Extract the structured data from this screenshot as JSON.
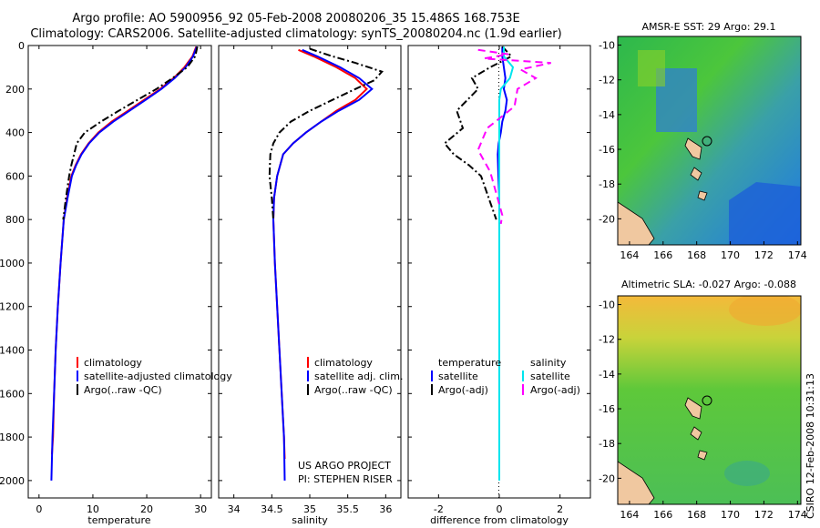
{
  "title": {
    "line1": "Argo profile: AO 5900956_92 05-Feb-2008 20080206_35 15.486S 168.753E",
    "line2": "Climatology: CARS2006. Satellite-adjusted climatology: synTS_20080204.nc (1.9d earlier)"
  },
  "colors": {
    "climatology": "#ff0000",
    "satellite": "#0000ff",
    "argo": "#000000",
    "salinity_satellite": "#00e5ee",
    "salinity_argo": "#ff00ff"
  },
  "chart_data": [
    {
      "type": "line",
      "name": "temperature-profile",
      "xlabel": "temperature",
      "xlim": [
        -2,
        32
      ],
      "ylim": [
        0,
        2080
      ],
      "y_reversed": true,
      "xticks": [
        0,
        10,
        20,
        30
      ],
      "yticks": [
        0,
        200,
        400,
        600,
        800,
        1000,
        1200,
        1400,
        1600,
        1800,
        2000
      ],
      "legend": [
        "climatology",
        "satellite-adjusted climatology",
        "Argo(..raw -QC)"
      ],
      "series": [
        {
          "name": "climatology",
          "color": "#ff0000",
          "dash": "",
          "points": [
            [
              29.2,
              5
            ],
            [
              28.5,
              50
            ],
            [
              27,
              100
            ],
            [
              25,
              150
            ],
            [
              22.5,
              200
            ],
            [
              19.5,
              250
            ],
            [
              16.5,
              300
            ],
            [
              13.5,
              350
            ],
            [
              11,
              400
            ],
            [
              9.2,
              450
            ],
            [
              7.8,
              500
            ],
            [
              6.8,
              550
            ],
            [
              6.0,
              600
            ],
            [
              5.2,
              700
            ],
            [
              4.6,
              800
            ],
            [
              4.0,
              1000
            ],
            [
              3.5,
              1200
            ],
            [
              3.1,
              1400
            ],
            [
              2.8,
              1600
            ],
            [
              2.6,
              1800
            ],
            [
              2.4,
              1880
            ]
          ]
        },
        {
          "name": "satellite-adjusted climatology",
          "color": "#0000ff",
          "dash": "",
          "points": [
            [
              29.3,
              5
            ],
            [
              28.6,
              50
            ],
            [
              27.2,
              100
            ],
            [
              25.2,
              150
            ],
            [
              22.7,
              200
            ],
            [
              19.8,
              250
            ],
            [
              16.8,
              300
            ],
            [
              13.8,
              350
            ],
            [
              11.2,
              400
            ],
            [
              9.3,
              450
            ],
            [
              7.9,
              500
            ],
            [
              6.9,
              550
            ],
            [
              6.1,
              600
            ],
            [
              5.3,
              700
            ],
            [
              4.6,
              800
            ],
            [
              4.0,
              1000
            ],
            [
              3.5,
              1200
            ],
            [
              3.1,
              1400
            ],
            [
              2.8,
              1600
            ],
            [
              2.5,
              1800
            ],
            [
              2.3,
              2000
            ]
          ]
        },
        {
          "name": "Argo(..raw -QC)",
          "color": "#000000",
          "dash": "8,3,2,3",
          "points": [
            [
              29.4,
              5
            ],
            [
              29,
              50
            ],
            [
              27.5,
              100
            ],
            [
              24.8,
              150
            ],
            [
              21.8,
              200
            ],
            [
              18.3,
              250
            ],
            [
              14.8,
              300
            ],
            [
              11.5,
              350
            ],
            [
              8.5,
              400
            ],
            [
              7.0,
              450
            ],
            [
              6.5,
              500
            ],
            [
              6.0,
              550
            ],
            [
              5.6,
              600
            ],
            [
              5.0,
              700
            ],
            [
              4.5,
              800
            ]
          ]
        }
      ]
    },
    {
      "type": "line",
      "name": "salinity-profile",
      "xlabel": "salinity",
      "xlim": [
        33.8,
        36.2
      ],
      "ylim": [
        0,
        2080
      ],
      "y_reversed": true,
      "xticks": [
        34,
        34.5,
        35,
        35.5,
        36
      ],
      "legend": [
        "climatology",
        "satellite adj. clim.",
        "Argo(..raw -QC)"
      ],
      "annotation": [
        "US ARGO PROJECT",
        "PI: STEPHEN RISER"
      ],
      "series": [
        {
          "name": "climatology",
          "color": "#ff0000",
          "dash": "",
          "points": [
            [
              34.85,
              20
            ],
            [
              35.05,
              50
            ],
            [
              35.35,
              100
            ],
            [
              35.6,
              150
            ],
            [
              35.75,
              200
            ],
            [
              35.6,
              250
            ],
            [
              35.35,
              300
            ],
            [
              35.15,
              350
            ],
            [
              34.95,
              400
            ],
            [
              34.78,
              450
            ],
            [
              34.65,
              500
            ],
            [
              34.57,
              600
            ],
            [
              34.53,
              700
            ],
            [
              34.52,
              800
            ],
            [
              34.54,
              1000
            ],
            [
              34.57,
              1200
            ],
            [
              34.6,
              1400
            ],
            [
              34.63,
              1600
            ],
            [
              34.66,
              1800
            ],
            [
              34.67,
              1900
            ]
          ]
        },
        {
          "name": "satellite adj. clim.",
          "color": "#0000ff",
          "dash": "",
          "points": [
            [
              34.9,
              20
            ],
            [
              35.1,
              50
            ],
            [
              35.4,
              100
            ],
            [
              35.65,
              150
            ],
            [
              35.82,
              200
            ],
            [
              35.65,
              250
            ],
            [
              35.38,
              300
            ],
            [
              35.15,
              350
            ],
            [
              34.95,
              400
            ],
            [
              34.78,
              450
            ],
            [
              34.65,
              500
            ],
            [
              34.57,
              600
            ],
            [
              34.53,
              700
            ],
            [
              34.52,
              800
            ],
            [
              34.54,
              1000
            ],
            [
              34.57,
              1200
            ],
            [
              34.6,
              1400
            ],
            [
              34.63,
              1600
            ],
            [
              34.66,
              1800
            ],
            [
              34.67,
              2000
            ]
          ]
        },
        {
          "name": "Argo(..raw -QC)",
          "color": "#000000",
          "dash": "8,3,2,3",
          "points": [
            [
              35.0,
              15
            ],
            [
              35.3,
              50
            ],
            [
              35.6,
              80
            ],
            [
              35.95,
              120
            ],
            [
              35.85,
              160
            ],
            [
              35.6,
              200
            ],
            [
              35.3,
              250
            ],
            [
              35.0,
              300
            ],
            [
              34.75,
              350
            ],
            [
              34.6,
              400
            ],
            [
              34.52,
              450
            ],
            [
              34.48,
              500
            ],
            [
              34.47,
              600
            ],
            [
              34.5,
              700
            ],
            [
              34.52,
              800
            ]
          ]
        }
      ]
    },
    {
      "type": "line",
      "name": "difference-profile",
      "xlabel": "difference from climatology",
      "xlim": [
        -3,
        3
      ],
      "ylim": [
        0,
        2080
      ],
      "y_reversed": true,
      "xticks": [
        -2,
        0,
        2
      ],
      "legend": [
        "temperature",
        "satellite",
        "Argo(-adj)",
        "salinity",
        "satellite",
        "Argo(-adj)"
      ],
      "series": [
        {
          "name": "temperature satellite",
          "color": "#0000ff",
          "dash": "",
          "points": [
            [
              0.1,
              5
            ],
            [
              0.1,
              50
            ],
            [
              0.15,
              100
            ],
            [
              0.2,
              150
            ],
            [
              0.15,
              200
            ],
            [
              0.25,
              250
            ],
            [
              0.2,
              300
            ],
            [
              0.1,
              350
            ],
            [
              0.05,
              400
            ],
            [
              -0.02,
              450
            ],
            [
              -0.05,
              500
            ],
            [
              -0.03,
              600
            ],
            [
              0,
              700
            ],
            [
              0,
              800
            ],
            [
              0,
              1000
            ],
            [
              0,
              1400
            ]
          ]
        },
        {
          "name": "temperature Argo(-adj)",
          "color": "#000000",
          "dash": "8,3,2,3",
          "points": [
            [
              0.1,
              5
            ],
            [
              0.4,
              50
            ],
            [
              -0.3,
              100
            ],
            [
              -0.9,
              150
            ],
            [
              -0.7,
              200
            ],
            [
              -1.4,
              300
            ],
            [
              -1.2,
              380
            ],
            [
              -1.8,
              450
            ],
            [
              -1.5,
              500
            ],
            [
              -1.0,
              550
            ],
            [
              -0.6,
              600
            ],
            [
              -0.35,
              700
            ],
            [
              -0.1,
              800
            ]
          ]
        },
        {
          "name": "salinity satellite",
          "color": "#00e5ee",
          "dash": "",
          "points": [
            [
              0.15,
              5
            ],
            [
              0.15,
              50
            ],
            [
              0.45,
              100
            ],
            [
              0.35,
              150
            ],
            [
              0.05,
              200
            ],
            [
              0,
              250
            ],
            [
              0,
              300
            ],
            [
              0,
              400
            ],
            [
              0,
              600
            ],
            [
              0,
              800
            ],
            [
              0,
              1000
            ],
            [
              0,
              1400
            ],
            [
              0,
              1800
            ],
            [
              0,
              2000
            ]
          ]
        },
        {
          "name": "salinity Argo(-adj)",
          "color": "#ff00ff",
          "dash": "8,5",
          "points": [
            [
              -0.7,
              20
            ],
            [
              0.3,
              40
            ],
            [
              -0.5,
              60
            ],
            [
              1.7,
              80
            ],
            [
              0.7,
              110
            ],
            [
              1.2,
              150
            ],
            [
              0.6,
              200
            ],
            [
              0.5,
              280
            ],
            [
              -0.4,
              380
            ],
            [
              -0.7,
              480
            ],
            [
              -0.3,
              580
            ],
            [
              -0.1,
              680
            ],
            [
              0.1,
              780
            ],
            [
              0.05,
              820
            ]
          ]
        }
      ]
    },
    {
      "type": "heatmap",
      "name": "sst-map",
      "title": "AMSR-E SST: 29 Argo: 29.1",
      "xlim": [
        163.3,
        174.2
      ],
      "ylim": [
        -21.5,
        -9.5
      ],
      "xticks": [
        164,
        166,
        168,
        170,
        172,
        174
      ],
      "yticks": [
        -10,
        -12,
        -14,
        -16,
        -18,
        -20
      ],
      "marker": {
        "lon": 168.753,
        "lat": -15.486
      }
    },
    {
      "type": "heatmap",
      "name": "sla-map",
      "title": "Altimetric SLA: -0.027 Argo: -0.088",
      "xlim": [
        163.3,
        174.2
      ],
      "ylim": [
        -21.5,
        -9.5
      ],
      "xticks": [
        164,
        166,
        168,
        170,
        172,
        174
      ],
      "yticks": [
        -10,
        -12,
        -14,
        -16,
        -18,
        -20
      ],
      "marker": {
        "lon": 168.753,
        "lat": -15.486
      }
    }
  ],
  "footer": {
    "project": "US ARGO PROJECT",
    "pi": "PI: STEPHEN RISER",
    "credit": "CSIRO 12-Feb-2008 10:31:13"
  }
}
